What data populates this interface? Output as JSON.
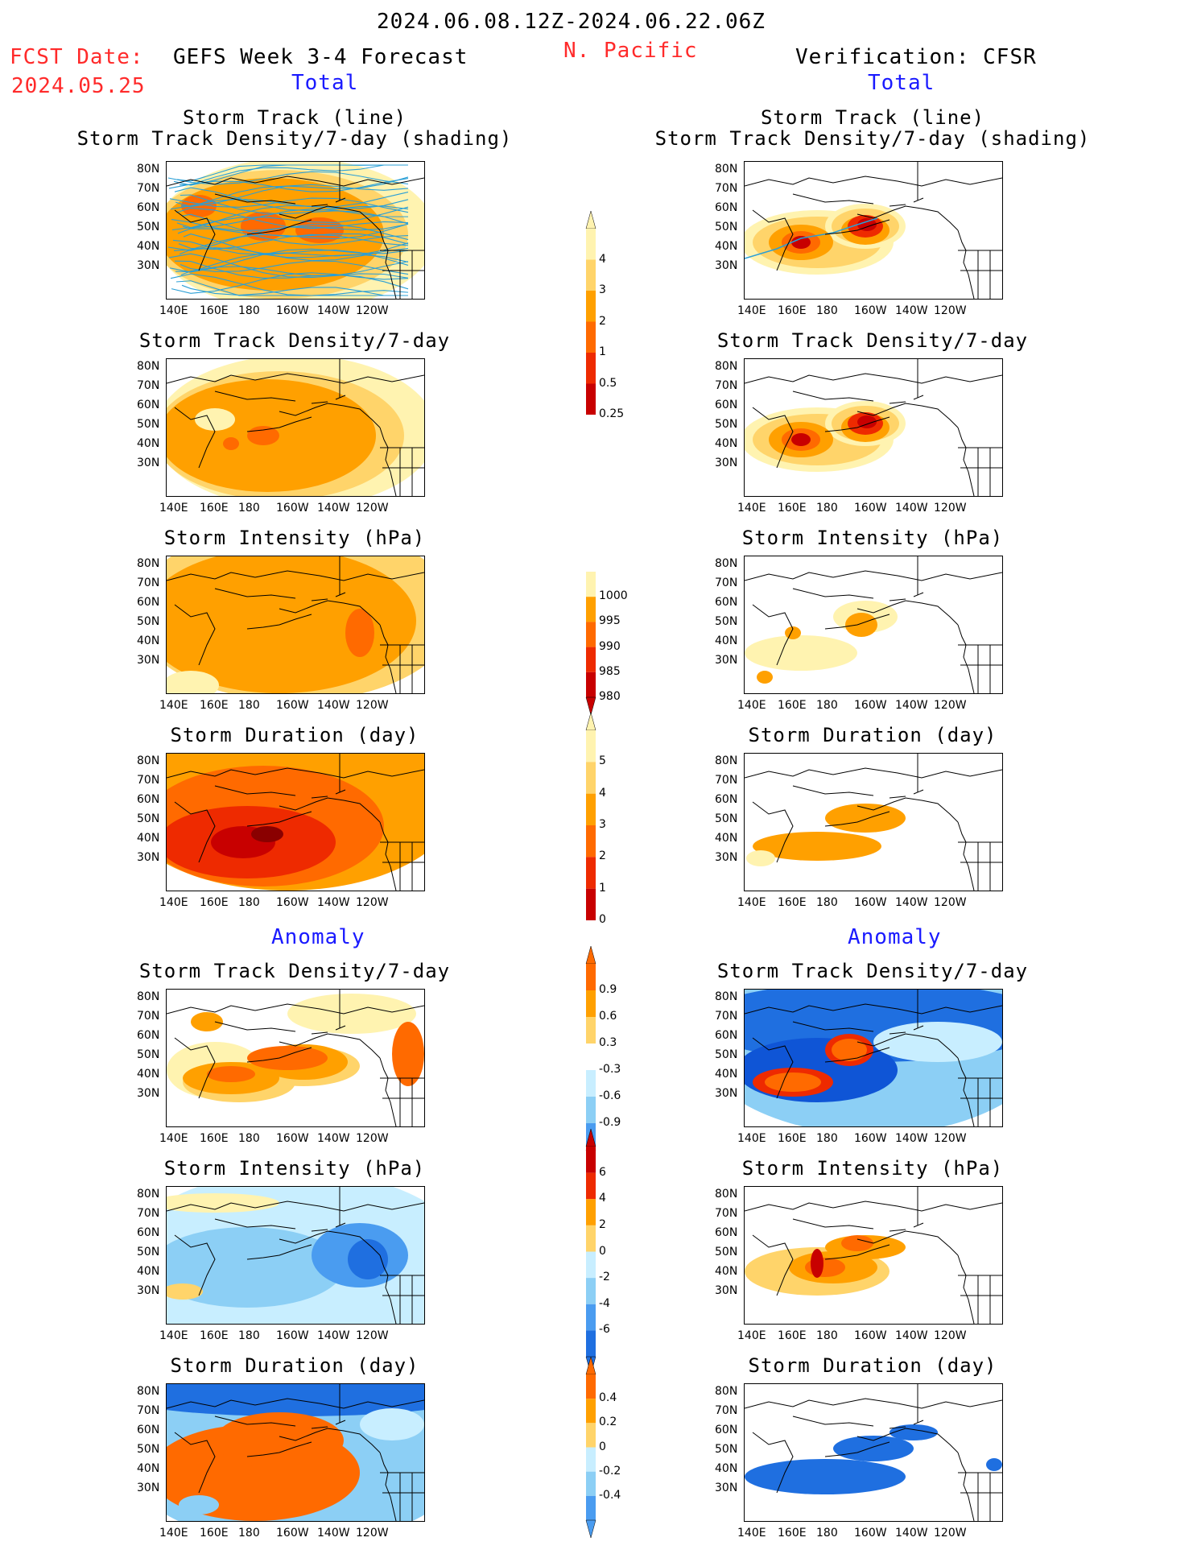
{
  "header": {
    "period": "2024.06.08.12Z-2024.06.22.06Z",
    "region": "N. Pacific",
    "fcst_label": "FCST Date:",
    "fcst_date": "2024.05.25",
    "left_title": "GEFS Week 3-4 Forecast",
    "right_title": "Verification: CFSR",
    "left_sub": "Total",
    "right_sub": "Total",
    "anomaly_left": "Anomaly",
    "anomaly_right": "Anomaly"
  },
  "axes": {
    "lat_ticks": [
      "80N",
      "70N",
      "60N",
      "50N",
      "40N",
      "30N"
    ],
    "lon_ticks": [
      "140E",
      "160E",
      "180",
      "160W",
      "140W",
      "120W"
    ]
  },
  "colors": {
    "pale": "#fff3b0",
    "light": "#ffd46a",
    "orange": "#ffa000",
    "dorange": "#ff6a00",
    "red": "#ee2a00",
    "dred": "#c80000",
    "maroon": "#8a0000",
    "lblue": "#c8eeff",
    "sky": "#8ccff5",
    "mblue": "#4a9cf0",
    "blue": "#1f6fe0",
    "dblue": "#0f55d6",
    "track": "#2a9fd6"
  },
  "panels": [
    {
      "id": "track-left",
      "title": "Storm Track (line)",
      "title2": "Storm Track Density/7-day (shading)"
    },
    {
      "id": "track-right",
      "title": "Storm Track (line)",
      "title2": "Storm Track Density/7-day (shading)"
    },
    {
      "id": "dens-left",
      "title": "Storm Track Density/7-day"
    },
    {
      "id": "dens-right",
      "title": "Storm Track Density/7-day"
    },
    {
      "id": "int-left",
      "title": "Storm Intensity (hPa)"
    },
    {
      "id": "int-right",
      "title": "Storm Intensity (hPa)"
    },
    {
      "id": "dur-left",
      "title": "Storm Duration (day)"
    },
    {
      "id": "dur-right",
      "title": "Storm Duration (day)"
    },
    {
      "id": "adens-left",
      "title": "Storm Track Density/7-day"
    },
    {
      "id": "adens-right",
      "title": "Storm Track Density/7-day"
    },
    {
      "id": "aint-left",
      "title": "Storm Intensity (hPa)"
    },
    {
      "id": "aint-right",
      "title": "Storm Intensity (hPa)"
    },
    {
      "id": "adur-left",
      "title": "Storm Duration (day)"
    },
    {
      "id": "adur-right",
      "title": "Storm Duration (day)"
    }
  ],
  "colorbars": [
    {
      "id": "cb-density",
      "labels": [
        "4",
        "3",
        "2",
        "1",
        "0.5",
        "0.25"
      ]
    },
    {
      "id": "cb-intensity",
      "labels": [
        "1000",
        "995",
        "990",
        "985",
        "980"
      ]
    },
    {
      "id": "cb-duration",
      "labels": [
        "5",
        "4",
        "3",
        "2",
        "1",
        "0"
      ]
    },
    {
      "id": "cb-adensity",
      "labels": [
        "0.9",
        "0.6",
        "0.3",
        "-0.3",
        "-0.6",
        "-0.9"
      ]
    },
    {
      "id": "cb-aint",
      "labels": [
        "6",
        "4",
        "2",
        "0",
        "-2",
        "-4",
        "-6"
      ]
    },
    {
      "id": "cb-adur",
      "labels": [
        "0.4",
        "0.2",
        "0",
        "-0.2",
        "-0.4"
      ]
    }
  ],
  "chart_data": [
    {
      "type": "heatmap",
      "title": "Storm Track (line) / Storm Track Density/7-day (shading)",
      "panel": "GEFS Week 3-4 Forecast",
      "legend": [
        0.25,
        0.5,
        1,
        2,
        3,
        4
      ]
    },
    {
      "type": "heatmap",
      "title": "Storm Track (line) / Storm Track Density/7-day (shading)",
      "panel": "Verification: CFSR",
      "legend": [
        0.25,
        0.5,
        1,
        2,
        3,
        4
      ]
    },
    {
      "type": "heatmap",
      "title": "Storm Track Density/7-day",
      "legend": [
        0.25,
        0.5,
        1,
        2,
        3,
        4
      ]
    },
    {
      "type": "heatmap",
      "title": "Storm Intensity (hPa)",
      "legend": [
        980,
        985,
        990,
        995,
        1000
      ]
    },
    {
      "type": "heatmap",
      "title": "Storm Duration (day)",
      "legend": [
        0,
        1,
        2,
        3,
        4,
        5
      ]
    },
    {
      "type": "heatmap",
      "title": "Anomaly Storm Track Density/7-day",
      "legend": [
        -0.9,
        -0.6,
        -0.3,
        0.3,
        0.6,
        0.9
      ]
    },
    {
      "type": "heatmap",
      "title": "Anomaly Storm Intensity (hPa)",
      "legend": [
        -6,
        -4,
        -2,
        0,
        2,
        4,
        6
      ]
    },
    {
      "type": "heatmap",
      "title": "Anomaly Storm Duration (day)",
      "legend": [
        -0.4,
        -0.2,
        0,
        0.2,
        0.4
      ]
    }
  ]
}
